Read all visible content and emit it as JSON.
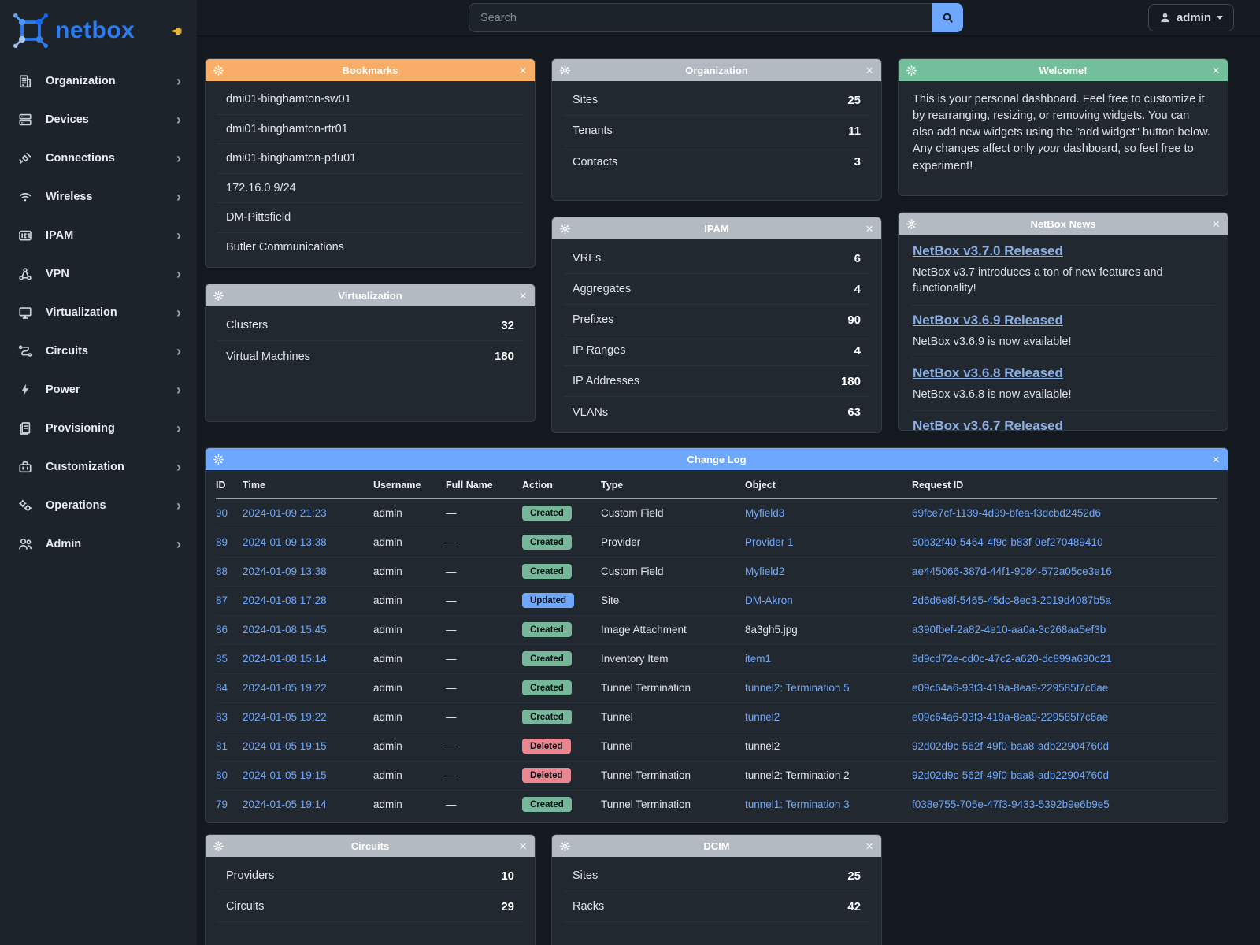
{
  "colors": {
    "header_orange": "#f8ad68",
    "header_gray": "#b3bac1",
    "header_green": "#74bf9b",
    "header_blue": "#6ea8fe",
    "badge_created": "#75b798",
    "badge_updated": "#6ea8fe",
    "badge_deleted": "#ea868f",
    "link": "#6ea8fe",
    "news_link": "#8cb0e4",
    "logo_blue": "#2b7cf2",
    "pin_yellow": "#e9b93d"
  },
  "sidebar": {
    "logo_text": "netbox",
    "items": [
      {
        "label": "Organization",
        "icon": "organization-icon"
      },
      {
        "label": "Devices",
        "icon": "devices-icon"
      },
      {
        "label": "Connections",
        "icon": "connections-icon"
      },
      {
        "label": "Wireless",
        "icon": "wireless-icon"
      },
      {
        "label": "IPAM",
        "icon": "ipam-icon"
      },
      {
        "label": "VPN",
        "icon": "vpn-icon"
      },
      {
        "label": "Virtualization",
        "icon": "virtualization-icon"
      },
      {
        "label": "Circuits",
        "icon": "circuits-icon"
      },
      {
        "label": "Power",
        "icon": "power-icon"
      },
      {
        "label": "Provisioning",
        "icon": "provisioning-icon"
      },
      {
        "label": "Customization",
        "icon": "customization-icon"
      },
      {
        "label": "Operations",
        "icon": "operations-icon"
      },
      {
        "label": "Admin",
        "icon": "admin-icon"
      }
    ]
  },
  "topbar": {
    "search_placeholder": "Search",
    "user_label": "admin"
  },
  "widgets": {
    "bookmarks": {
      "title": "Bookmarks",
      "accent": "orange",
      "items": [
        "dmi01-binghamton-sw01",
        "dmi01-binghamton-rtr01",
        "dmi01-binghamton-pdu01",
        "172.16.0.9/24",
        "DM-Pittsfield",
        "Butler Communications"
      ]
    },
    "organization": {
      "title": "Organization",
      "accent": "gray",
      "rows": [
        {
          "label": "Sites",
          "value": "25"
        },
        {
          "label": "Tenants",
          "value": "11"
        },
        {
          "label": "Contacts",
          "value": "3"
        }
      ]
    },
    "welcome": {
      "title": "Welcome!",
      "accent": "green",
      "text_before": "This is your personal dashboard. Feel free to customize it by rearranging, resizing, or removing widgets. You can also add new widgets using the \"add widget\" button below. Any changes affect only ",
      "italic_word": "your",
      "text_after": " dashboard, so feel free to experiment!"
    },
    "virtualization": {
      "title": "Virtualization",
      "accent": "gray",
      "rows": [
        {
          "label": "Clusters",
          "value": "32"
        },
        {
          "label": "Virtual Machines",
          "value": "180"
        }
      ]
    },
    "ipam": {
      "title": "IPAM",
      "accent": "gray",
      "rows": [
        {
          "label": "VRFs",
          "value": "6"
        },
        {
          "label": "Aggregates",
          "value": "4"
        },
        {
          "label": "Prefixes",
          "value": "90"
        },
        {
          "label": "IP Ranges",
          "value": "4"
        },
        {
          "label": "IP Addresses",
          "value": "180"
        },
        {
          "label": "VLANs",
          "value": "63"
        }
      ]
    },
    "news": {
      "title": "NetBox News",
      "accent": "gray",
      "entries": [
        {
          "title": "NetBox v3.7.0 Released",
          "desc": "NetBox v3.7 introduces a ton of new features and functionality!"
        },
        {
          "title": "NetBox v3.6.9 Released",
          "desc": "NetBox v3.6.9 is now available!"
        },
        {
          "title": "NetBox v3.6.8 Released",
          "desc": "NetBox v3.6.8 is now available!"
        },
        {
          "title": "NetBox v3.6.7 Released",
          "desc": ""
        }
      ]
    },
    "changelog": {
      "title": "Change Log",
      "accent": "blue",
      "columns": [
        "ID",
        "Time",
        "Username",
        "Full Name",
        "Action",
        "Type",
        "Object",
        "Request ID"
      ],
      "rows": [
        {
          "id": "90",
          "time": "2024-01-09 21:23",
          "username": "admin",
          "full_name": "—",
          "action": "Created",
          "type": "Custom Field",
          "object": "Myfield3",
          "object_is_link": true,
          "request_id": "69fce7cf-1139-4d99-bfea-f3dcbd2452d6"
        },
        {
          "id": "89",
          "time": "2024-01-09 13:38",
          "username": "admin",
          "full_name": "—",
          "action": "Created",
          "type": "Provider",
          "object": "Provider 1",
          "object_is_link": true,
          "request_id": "50b32f40-5464-4f9c-b83f-0ef270489410"
        },
        {
          "id": "88",
          "time": "2024-01-09 13:38",
          "username": "admin",
          "full_name": "—",
          "action": "Created",
          "type": "Custom Field",
          "object": "Myfield2",
          "object_is_link": true,
          "request_id": "ae445066-387d-44f1-9084-572a05ce3e16"
        },
        {
          "id": "87",
          "time": "2024-01-08 17:28",
          "username": "admin",
          "full_name": "—",
          "action": "Updated",
          "type": "Site",
          "object": "DM-Akron",
          "object_is_link": true,
          "request_id": "2d6d6e8f-5465-45dc-8ec3-2019d4087b5a"
        },
        {
          "id": "86",
          "time": "2024-01-08 15:45",
          "username": "admin",
          "full_name": "—",
          "action": "Created",
          "type": "Image Attachment",
          "object": "8a3gh5.jpg",
          "object_is_link": false,
          "request_id": "a390fbef-2a82-4e10-aa0a-3c268aa5ef3b"
        },
        {
          "id": "85",
          "time": "2024-01-08 15:14",
          "username": "admin",
          "full_name": "—",
          "action": "Created",
          "type": "Inventory Item",
          "object": "item1",
          "object_is_link": true,
          "request_id": "8d9cd72e-cd0c-47c2-a620-dc899a690c21"
        },
        {
          "id": "84",
          "time": "2024-01-05 19:22",
          "username": "admin",
          "full_name": "—",
          "action": "Created",
          "type": "Tunnel Termination",
          "object": "tunnel2: Termination 5",
          "object_is_link": true,
          "request_id": "e09c64a6-93f3-419a-8ea9-229585f7c6ae"
        },
        {
          "id": "83",
          "time": "2024-01-05 19:22",
          "username": "admin",
          "full_name": "—",
          "action": "Created",
          "type": "Tunnel",
          "object": "tunnel2",
          "object_is_link": true,
          "request_id": "e09c64a6-93f3-419a-8ea9-229585f7c6ae"
        },
        {
          "id": "81",
          "time": "2024-01-05 19:15",
          "username": "admin",
          "full_name": "—",
          "action": "Deleted",
          "type": "Tunnel",
          "object": "tunnel2",
          "object_is_link": false,
          "request_id": "92d02d9c-562f-49f0-baa8-adb22904760d"
        },
        {
          "id": "80",
          "time": "2024-01-05 19:15",
          "username": "admin",
          "full_name": "—",
          "action": "Deleted",
          "type": "Tunnel Termination",
          "object": "tunnel2: Termination 2",
          "object_is_link": false,
          "request_id": "92d02d9c-562f-49f0-baa8-adb22904760d"
        },
        {
          "id": "79",
          "time": "2024-01-05 19:14",
          "username": "admin",
          "full_name": "—",
          "action": "Created",
          "type": "Tunnel Termination",
          "object": "tunnel1: Termination 3",
          "object_is_link": true,
          "request_id": "f038e755-705e-47f3-9433-5392b9e6b9e5"
        }
      ]
    },
    "circuits": {
      "title": "Circuits",
      "accent": "gray",
      "rows": [
        {
          "label": "Providers",
          "value": "10"
        },
        {
          "label": "Circuits",
          "value": "29"
        }
      ]
    },
    "dcim": {
      "title": "DCIM",
      "accent": "gray",
      "rows": [
        {
          "label": "Sites",
          "value": "25"
        },
        {
          "label": "Racks",
          "value": "42"
        }
      ]
    }
  }
}
